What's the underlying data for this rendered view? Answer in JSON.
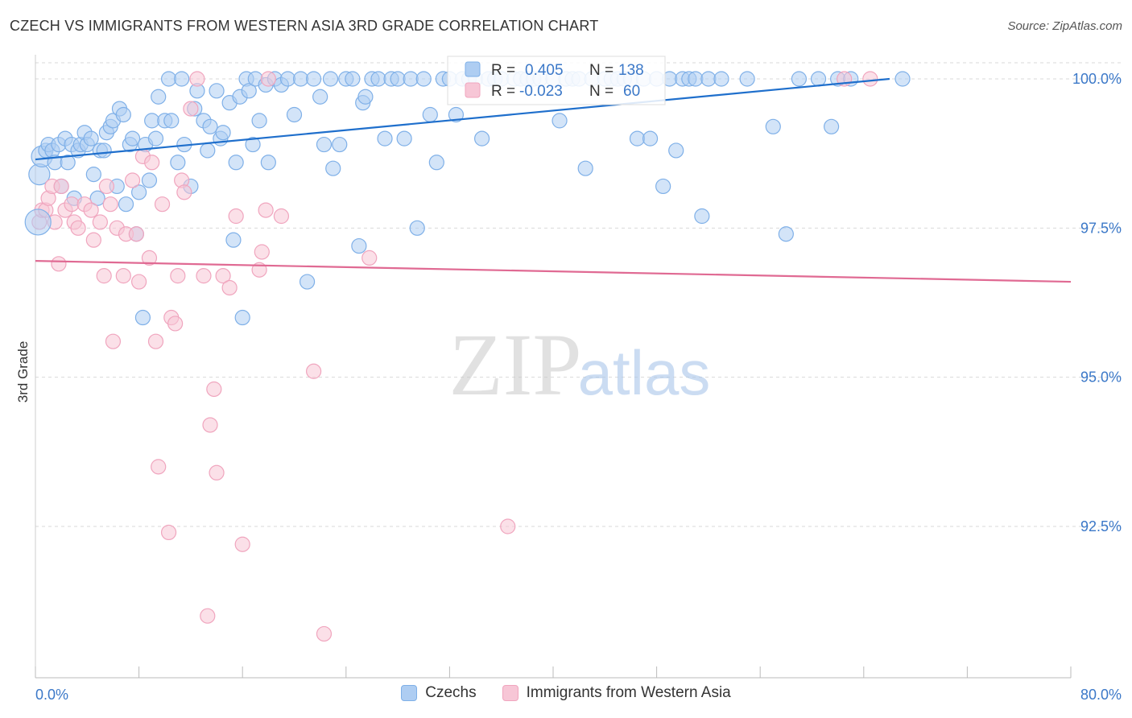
{
  "header": {
    "title": "CZECH VS IMMIGRANTS FROM WESTERN ASIA 3RD GRADE CORRELATION CHART",
    "source": "Source: ZipAtlas.com"
  },
  "watermark": {
    "zip": "ZIP",
    "atlas": "atlas"
  },
  "colors": {
    "blue": "#7fb0e8",
    "blue_fill": "#aecdf2",
    "blue_line": "#1f6fcc",
    "pink": "#f0a5be",
    "pink_fill": "#f7c6d6",
    "pink_line": "#e06a93",
    "axis_text": "#3b78c8",
    "grid": "#d9d9d9"
  },
  "legend_box": {
    "rows": [
      {
        "r_label": "R =",
        "r_value": "0.405",
        "n_label": "N =",
        "n_value": "138"
      },
      {
        "r_label": "R =",
        "r_value": "-0.023",
        "n_label": "N =",
        "n_value": "60"
      }
    ]
  },
  "chart_data": {
    "type": "scatter",
    "title": "CZECH VS IMMIGRANTS FROM WESTERN ASIA 3RD GRADE CORRELATION CHART",
    "xlabel": "",
    "ylabel": "3rd Grade",
    "xlim": [
      0,
      80
    ],
    "ylim": [
      90.0,
      100.4
    ],
    "x_tick_labels": [
      "0.0%",
      "80.0%"
    ],
    "y_ticks": [
      92.5,
      95.0,
      97.5,
      100.0
    ],
    "y_tick_labels": [
      "92.5%",
      "95.0%",
      "97.5%",
      "100.0%"
    ],
    "grid": true,
    "legend_position": "bottom",
    "series": [
      {
        "name": "Czechs",
        "color": "#7fb0e8",
        "trend": {
          "x": [
            0,
            66
          ],
          "y": [
            98.65,
            100.0
          ]
        },
        "points": [
          [
            0.3,
            98.4
          ],
          [
            0.5,
            98.7
          ],
          [
            0.8,
            98.8
          ],
          [
            1.0,
            98.9
          ],
          [
            1.3,
            98.8
          ],
          [
            1.5,
            98.6
          ],
          [
            1.8,
            98.9
          ],
          [
            2.0,
            98.2
          ],
          [
            2.3,
            99.0
          ],
          [
            2.5,
            98.6
          ],
          [
            2.8,
            98.9
          ],
          [
            3.0,
            98.0
          ],
          [
            3.3,
            98.8
          ],
          [
            3.5,
            98.9
          ],
          [
            3.8,
            99.1
          ],
          [
            4.0,
            98.9
          ],
          [
            4.3,
            99.0
          ],
          [
            4.5,
            98.4
          ],
          [
            4.8,
            98.0
          ],
          [
            5.0,
            98.8
          ],
          [
            5.3,
            98.8
          ],
          [
            5.5,
            99.1
          ],
          [
            5.8,
            99.2
          ],
          [
            6.0,
            99.3
          ],
          [
            6.3,
            98.2
          ],
          [
            6.5,
            99.5
          ],
          [
            6.8,
            99.4
          ],
          [
            7.0,
            97.9
          ],
          [
            7.3,
            98.9
          ],
          [
            7.5,
            99.0
          ],
          [
            7.8,
            97.4
          ],
          [
            8.0,
            98.1
          ],
          [
            8.3,
            96.0
          ],
          [
            8.5,
            98.9
          ],
          [
            8.8,
            98.3
          ],
          [
            9.0,
            99.3
          ],
          [
            9.3,
            99.0
          ],
          [
            9.5,
            99.7
          ],
          [
            10.0,
            99.3
          ],
          [
            10.3,
            100.0
          ],
          [
            10.5,
            99.3
          ],
          [
            11.0,
            98.6
          ],
          [
            11.3,
            100.0
          ],
          [
            11.5,
            98.9
          ],
          [
            12.0,
            98.2
          ],
          [
            12.3,
            99.5
          ],
          [
            12.5,
            99.8
          ],
          [
            13.0,
            99.3
          ],
          [
            13.3,
            98.8
          ],
          [
            13.5,
            99.2
          ],
          [
            14.0,
            99.8
          ],
          [
            14.3,
            99.0
          ],
          [
            14.5,
            99.1
          ],
          [
            15.0,
            99.6
          ],
          [
            15.3,
            97.3
          ],
          [
            15.5,
            98.6
          ],
          [
            15.8,
            99.7
          ],
          [
            16.0,
            96.0
          ],
          [
            16.3,
            100.0
          ],
          [
            16.5,
            99.8
          ],
          [
            16.8,
            98.9
          ],
          [
            17.0,
            100.0
          ],
          [
            17.3,
            99.3
          ],
          [
            17.8,
            99.9
          ],
          [
            18.0,
            98.6
          ],
          [
            18.5,
            100.0
          ],
          [
            19.0,
            99.9
          ],
          [
            19.5,
            100.0
          ],
          [
            20.0,
            99.4
          ],
          [
            20.5,
            100.0
          ],
          [
            21.0,
            96.6
          ],
          [
            21.5,
            100.0
          ],
          [
            22.0,
            99.7
          ],
          [
            22.3,
            98.9
          ],
          [
            22.8,
            100.0
          ],
          [
            23.0,
            98.5
          ],
          [
            23.5,
            98.9
          ],
          [
            24.0,
            100.0
          ],
          [
            24.5,
            100.0
          ],
          [
            25.0,
            97.2
          ],
          [
            25.3,
            99.6
          ],
          [
            25.5,
            99.7
          ],
          [
            26.0,
            100.0
          ],
          [
            26.5,
            100.0
          ],
          [
            27.0,
            99.0
          ],
          [
            27.5,
            100.0
          ],
          [
            28.0,
            100.0
          ],
          [
            28.5,
            99.0
          ],
          [
            29.0,
            100.0
          ],
          [
            29.5,
            97.5
          ],
          [
            30.0,
            100.0
          ],
          [
            30.5,
            99.4
          ],
          [
            31.0,
            98.6
          ],
          [
            31.5,
            100.0
          ],
          [
            32.0,
            100.0
          ],
          [
            32.5,
            99.4
          ],
          [
            33.0,
            100.0
          ],
          [
            33.5,
            100.0
          ],
          [
            34.0,
            100.0
          ],
          [
            34.5,
            99.0
          ],
          [
            35.0,
            100.0
          ],
          [
            35.5,
            100.0
          ],
          [
            36.0,
            100.0
          ],
          [
            37.0,
            100.0
          ],
          [
            37.5,
            100.0
          ],
          [
            38.0,
            100.0
          ],
          [
            38.5,
            100.0
          ],
          [
            39.0,
            100.0
          ],
          [
            40.0,
            100.0
          ],
          [
            40.5,
            99.3
          ],
          [
            41.0,
            100.0
          ],
          [
            41.5,
            100.0
          ],
          [
            42.0,
            100.0
          ],
          [
            42.5,
            98.5
          ],
          [
            43.0,
            100.0
          ],
          [
            44.0,
            100.0
          ],
          [
            44.5,
            100.0
          ],
          [
            45.0,
            100.0
          ],
          [
            45.5,
            100.0
          ],
          [
            46.0,
            100.0
          ],
          [
            46.5,
            99.0
          ],
          [
            47.0,
            100.0
          ],
          [
            47.5,
            99.0
          ],
          [
            48.0,
            100.0
          ],
          [
            48.5,
            98.2
          ],
          [
            49.0,
            100.0
          ],
          [
            49.5,
            98.8
          ],
          [
            50.0,
            100.0
          ],
          [
            50.5,
            100.0
          ],
          [
            51.0,
            100.0
          ],
          [
            51.5,
            97.7
          ],
          [
            52.0,
            100.0
          ],
          [
            53.0,
            100.0
          ],
          [
            55.0,
            100.0
          ],
          [
            57.0,
            99.2
          ],
          [
            58.0,
            97.4
          ],
          [
            59.0,
            100.0
          ],
          [
            60.5,
            100.0
          ],
          [
            61.5,
            99.2
          ],
          [
            62.0,
            100.0
          ],
          [
            63.0,
            100.0
          ],
          [
            67.0,
            100.0
          ]
        ]
      },
      {
        "name": "Immigrants from Western Asia",
        "color": "#f0a5be",
        "trend": {
          "x": [
            0,
            80
          ],
          "y": [
            96.95,
            96.6
          ]
        },
        "points": [
          [
            0.3,
            97.6
          ],
          [
            0.5,
            97.8
          ],
          [
            0.8,
            97.8
          ],
          [
            1.0,
            98.0
          ],
          [
            1.3,
            98.2
          ],
          [
            1.5,
            97.6
          ],
          [
            1.8,
            96.9
          ],
          [
            2.0,
            98.2
          ],
          [
            2.3,
            97.8
          ],
          [
            2.8,
            97.9
          ],
          [
            3.0,
            97.6
          ],
          [
            3.3,
            97.5
          ],
          [
            3.8,
            97.9
          ],
          [
            4.3,
            97.8
          ],
          [
            4.5,
            97.3
          ],
          [
            5.0,
            97.6
          ],
          [
            5.3,
            96.7
          ],
          [
            5.5,
            98.2
          ],
          [
            5.8,
            97.9
          ],
          [
            6.0,
            95.6
          ],
          [
            6.3,
            97.5
          ],
          [
            6.8,
            96.7
          ],
          [
            7.0,
            97.4
          ],
          [
            7.5,
            98.3
          ],
          [
            7.8,
            97.4
          ],
          [
            8.0,
            96.6
          ],
          [
            8.3,
            98.7
          ],
          [
            8.8,
            97.0
          ],
          [
            9.0,
            98.6
          ],
          [
            9.3,
            95.6
          ],
          [
            9.5,
            93.5
          ],
          [
            9.8,
            97.9
          ],
          [
            10.3,
            92.4
          ],
          [
            10.5,
            96.0
          ],
          [
            10.8,
            95.9
          ],
          [
            11.0,
            96.7
          ],
          [
            11.3,
            98.3
          ],
          [
            11.5,
            98.1
          ],
          [
            12.0,
            99.5
          ],
          [
            12.5,
            100.0
          ],
          [
            13.0,
            96.7
          ],
          [
            13.3,
            91.0
          ],
          [
            13.5,
            94.2
          ],
          [
            13.8,
            94.8
          ],
          [
            14.0,
            93.4
          ],
          [
            14.5,
            96.7
          ],
          [
            15.0,
            96.5
          ],
          [
            15.5,
            97.7
          ],
          [
            16.0,
            92.2
          ],
          [
            17.3,
            96.8
          ],
          [
            17.5,
            97.1
          ],
          [
            17.8,
            97.8
          ],
          [
            18.0,
            100.0
          ],
          [
            19.0,
            97.7
          ],
          [
            21.5,
            95.1
          ],
          [
            22.3,
            90.7
          ],
          [
            25.8,
            97.0
          ],
          [
            36.5,
            92.5
          ],
          [
            62.5,
            100.0
          ],
          [
            64.5,
            100.0
          ]
        ]
      }
    ]
  },
  "bottom_legend": [
    {
      "label": "Czechs",
      "swatch": "blue"
    },
    {
      "label": "Immigrants from Western Asia",
      "swatch": "pink"
    }
  ]
}
